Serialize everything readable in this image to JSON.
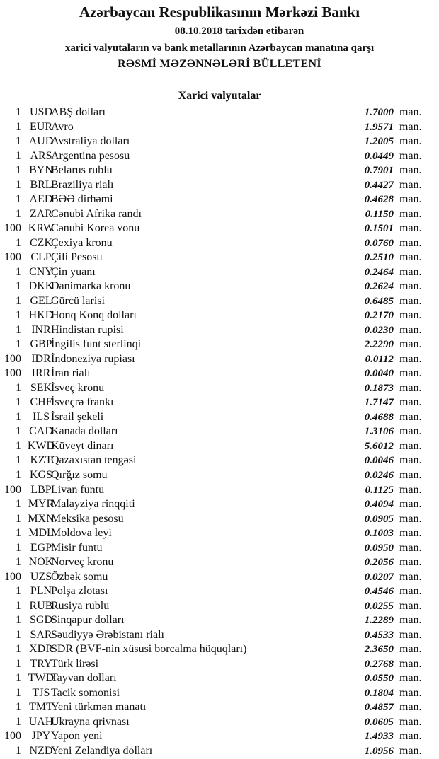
{
  "header": {
    "title": "Azərbaycan Respublikasının Mərkəzi Bankı",
    "date_line": "08.10.2018  tarixdən etibarən",
    "subtitle": "xarici valyutaların və bank metallarının Azərbaycan manatına qarşı",
    "bulletin": "RƏSMİ MƏZƏNNƏLƏRİ BÜLLETENİ"
  },
  "section_title": "Xarici valyutalar",
  "unit": "man.",
  "rates": [
    {
      "nominal": "1",
      "code": "USD",
      "name": "ABŞ dolları",
      "rate": "1.7000"
    },
    {
      "nominal": "1",
      "code": "EUR",
      "name": "Avro",
      "rate": "1.9571"
    },
    {
      "nominal": "1",
      "code": "AUD",
      "name": "Avstraliya dolları",
      "rate": "1.2005"
    },
    {
      "nominal": "1",
      "code": "ARS",
      "name": "Argentina pesosu",
      "rate": "0.0449"
    },
    {
      "nominal": "1",
      "code": "BYN",
      "name": "Belarus rublu",
      "rate": "0.7901"
    },
    {
      "nominal": "1",
      "code": "BRL",
      "name": "Braziliya rialı",
      "rate": "0.4427"
    },
    {
      "nominal": "1",
      "code": "AED",
      "name": "BƏƏ dirhəmi",
      "rate": "0.4628"
    },
    {
      "nominal": "1",
      "code": "ZAR",
      "name": "Cənubi Afrika randı",
      "rate": "0.1150"
    },
    {
      "nominal": "100",
      "code": "KRW",
      "name": "Cənubi Korea vonu",
      "rate": "0.1501"
    },
    {
      "nominal": "1",
      "code": "CZK",
      "name": "Çexiya kronu",
      "rate": "0.0760"
    },
    {
      "nominal": "100",
      "code": "CLP",
      "name": "Çili Pesosu",
      "rate": "0.2510"
    },
    {
      "nominal": "1",
      "code": "CNY",
      "name": "Çin yuanı",
      "rate": "0.2464"
    },
    {
      "nominal": "1",
      "code": "DKK",
      "name": "Danimarka kronu",
      "rate": "0.2624"
    },
    {
      "nominal": "1",
      "code": "GEL",
      "name": "Gürcü larisi",
      "rate": "0.6485"
    },
    {
      "nominal": "1",
      "code": "HKD",
      "name": "Honq Konq dolları",
      "rate": "0.2170"
    },
    {
      "nominal": "1",
      "code": "INR",
      "name": "Hindistan rupisi",
      "rate": "0.0230"
    },
    {
      "nominal": "1",
      "code": "GBP",
      "name": "İngilis funt sterlinqi",
      "rate": "2.2290"
    },
    {
      "nominal": "100",
      "code": "IDR",
      "name": "İndoneziya rupiası",
      "rate": "0.0112"
    },
    {
      "nominal": "100",
      "code": "IRR",
      "name": "İran rialı",
      "rate": "0.0040"
    },
    {
      "nominal": "1",
      "code": "SEK",
      "name": "İsveç kronu",
      "rate": "0.1873"
    },
    {
      "nominal": "1",
      "code": "CHF",
      "name": "İsveçrə frankı",
      "rate": "1.7147"
    },
    {
      "nominal": "1",
      "code": "ILS",
      "name": "İsrail şekeli",
      "rate": "0.4688"
    },
    {
      "nominal": "1",
      "code": "CAD",
      "name": "Kanada dolları",
      "rate": "1.3106"
    },
    {
      "nominal": "1",
      "code": "KWD",
      "name": "Küveyt dinarı",
      "rate": "5.6012"
    },
    {
      "nominal": "1",
      "code": "KZT",
      "name": "Qazaxıstan tengəsi",
      "rate": "0.0046"
    },
    {
      "nominal": "1",
      "code": "KGS",
      "name": "Qırğız somu",
      "rate": "0.0246"
    },
    {
      "nominal": "100",
      "code": "LBP",
      "name": "Livan funtu",
      "rate": "0.1125"
    },
    {
      "nominal": "1",
      "code": "MYR",
      "name": "Malayziya rinqqiti",
      "rate": "0.4094"
    },
    {
      "nominal": "1",
      "code": "MXN",
      "name": "Meksika pesosu",
      "rate": "0.0905"
    },
    {
      "nominal": "1",
      "code": "MDL",
      "name": "Moldova leyi",
      "rate": "0.1003"
    },
    {
      "nominal": "1",
      "code": "EGP",
      "name": "Misir funtu",
      "rate": "0.0950"
    },
    {
      "nominal": "1",
      "code": "NOK",
      "name": "Norveç kronu",
      "rate": "0.2056"
    },
    {
      "nominal": "100",
      "code": "UZS",
      "name": "Özbək somu",
      "rate": "0.0207"
    },
    {
      "nominal": "1",
      "code": "PLN",
      "name": "Polşa zlotası",
      "rate": "0.4546"
    },
    {
      "nominal": "1",
      "code": "RUB",
      "name": "Rusiya rublu",
      "rate": "0.0255"
    },
    {
      "nominal": "1",
      "code": "SGD",
      "name": "Sinqapur dolları",
      "rate": "1.2289"
    },
    {
      "nominal": "1",
      "code": "SAR",
      "name": "Səudiyyə Ərəbistanı rialı",
      "rate": "0.4533"
    },
    {
      "nominal": "1",
      "code": "XDR",
      "name": "SDR (BVF-nin xüsusi borcalma hüquqları)",
      "rate": "2.3650"
    },
    {
      "nominal": "1",
      "code": "TRY",
      "name": "Türk lirəsi",
      "rate": "0.2768"
    },
    {
      "nominal": "1",
      "code": "TWD",
      "name": "Tayvan dolları",
      "rate": "0.0550"
    },
    {
      "nominal": "1",
      "code": "TJS",
      "name": "Tacik somonisi",
      "rate": "0.1804"
    },
    {
      "nominal": "1",
      "code": "TMT",
      "name": "Yeni türkmən manatı",
      "rate": "0.4857"
    },
    {
      "nominal": "1",
      "code": "UAH",
      "name": "Ukrayna qrivnası",
      "rate": "0.0605"
    },
    {
      "nominal": "100",
      "code": "JPY",
      "name": "Yapon yeni",
      "rate": "1.4933"
    },
    {
      "nominal": "1",
      "code": "NZD",
      "name": "Yeni Zelandiya dolları",
      "rate": "1.0956"
    }
  ]
}
